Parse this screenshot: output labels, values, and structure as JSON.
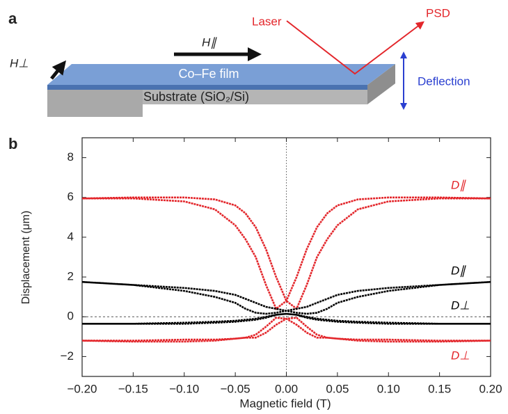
{
  "panel_labels": [
    "a",
    "b"
  ],
  "diagram": {
    "laser": "Laser",
    "psd": "PSD",
    "h_parallel": "H∥",
    "h_perp": "H⊥",
    "film": "Co–Fe film",
    "substrate": "Substrate (SiO₂/Si)",
    "deflection": "Deflection"
  },
  "chart_data": {
    "type": "line",
    "x_label": "Magnetic field (T)",
    "y_label": "Displacement (μm)",
    "xlim": [
      -0.2,
      0.2
    ],
    "ylim": [
      -3,
      9
    ],
    "xticks": [
      {
        "value": -0.2,
        "label": "−0.20"
      },
      {
        "value": -0.15,
        "label": "−0.15"
      },
      {
        "value": -0.1,
        "label": "−0.10"
      },
      {
        "value": -0.05,
        "label": "−0.05"
      },
      {
        "value": 0,
        "label": "0.00"
      },
      0.05,
      {
        "value": 0.1,
        "label": "0.10"
      },
      0.15,
      {
        "value": 0.2,
        "label": "0.20"
      }
    ],
    "yticks": [
      {
        "value": -2,
        "label": "−2"
      },
      0,
      2,
      4,
      6,
      8
    ],
    "grid": false,
    "series": [
      {
        "name": "D∥",
        "color": "#e3262b",
        "x": [
          -0.2,
          -0.15,
          -0.1,
          -0.07,
          -0.05,
          -0.04,
          -0.03,
          -0.02,
          -0.01,
          0,
          0.01,
          0.02,
          0.03,
          0.04,
          0.05,
          0.07,
          0.1,
          0.15,
          0.2,
          0.2,
          0.15,
          0.1,
          0.07,
          0.05,
          0.04,
          0.03,
          0.02,
          0.01,
          0,
          -0.01,
          -0.02,
          -0.03,
          -0.04,
          -0.05,
          -0.07,
          -0.1,
          -0.15,
          -0.2
        ],
        "values": [
          5.95,
          6.0,
          6.0,
          5.9,
          5.6,
          5.2,
          4.5,
          3.4,
          2.0,
          0.8,
          0.4,
          1.6,
          3.0,
          3.9,
          4.6,
          5.4,
          5.8,
          5.95,
          5.95,
          5.95,
          6.0,
          6.0,
          5.9,
          5.6,
          5.2,
          4.5,
          3.4,
          2.0,
          0.8,
          0.4,
          1.6,
          3.0,
          3.9,
          4.6,
          5.4,
          5.8,
          5.95,
          5.95
        ]
      },
      {
        "name": "D∥",
        "color": "#000000",
        "x": [
          -0.2,
          -0.15,
          -0.1,
          -0.07,
          -0.05,
          -0.04,
          -0.03,
          -0.02,
          -0.01,
          0,
          0.01,
          0.02,
          0.03,
          0.04,
          0.05,
          0.07,
          0.1,
          0.15,
          0.2,
          0.2,
          0.15,
          0.1,
          0.07,
          0.05,
          0.04,
          0.03,
          0.02,
          0.01,
          0,
          -0.01,
          -0.02,
          -0.03,
          -0.04,
          -0.05,
          -0.07,
          -0.1,
          -0.15,
          -0.2
        ],
        "values": [
          1.75,
          1.6,
          1.45,
          1.3,
          1.1,
          0.9,
          0.7,
          0.5,
          0.4,
          0.3,
          0.2,
          0.15,
          0.2,
          0.4,
          0.7,
          1.0,
          1.3,
          1.6,
          1.75,
          1.75,
          1.6,
          1.45,
          1.3,
          1.1,
          0.9,
          0.7,
          0.5,
          0.4,
          0.3,
          0.2,
          0.15,
          0.2,
          0.4,
          0.7,
          1.0,
          1.3,
          1.6,
          1.75
        ]
      },
      {
        "name": "D⊥",
        "color": "#000000",
        "x": [
          -0.2,
          -0.15,
          -0.1,
          -0.07,
          -0.05,
          -0.04,
          -0.03,
          -0.02,
          -0.01,
          0,
          0.01,
          0.02,
          0.03,
          0.04,
          0.05,
          0.07,
          0.1,
          0.15,
          0.2,
          0.2,
          0.15,
          0.1,
          0.07,
          0.05,
          0.04,
          0.03,
          0.02,
          0.01,
          0,
          -0.01,
          -0.02,
          -0.03,
          -0.04,
          -0.05,
          -0.07,
          -0.1,
          -0.15,
          -0.2
        ],
        "values": [
          -0.35,
          -0.35,
          -0.3,
          -0.25,
          -0.2,
          -0.15,
          -0.1,
          0.0,
          0.1,
          0.15,
          0.1,
          -0.05,
          -0.15,
          -0.2,
          -0.25,
          -0.3,
          -0.35,
          -0.35,
          -0.35,
          -0.35,
          -0.35,
          -0.3,
          -0.25,
          -0.2,
          -0.15,
          -0.1,
          0.0,
          0.1,
          0.15,
          0.1,
          -0.05,
          -0.15,
          -0.2,
          -0.25,
          -0.3,
          -0.35,
          -0.35,
          -0.35
        ]
      },
      {
        "name": "D⊥",
        "color": "#e3262b",
        "x": [
          -0.2,
          -0.15,
          -0.1,
          -0.07,
          -0.05,
          -0.04,
          -0.03,
          -0.02,
          -0.01,
          0,
          0.01,
          0.02,
          0.03,
          0.04,
          0.05,
          0.07,
          0.1,
          0.15,
          0.2,
          0.2,
          0.15,
          0.1,
          0.07,
          0.05,
          0.04,
          0.03,
          0.02,
          0.01,
          0,
          -0.01,
          -0.02,
          -0.03,
          -0.04,
          -0.05,
          -0.07,
          -0.1,
          -0.15,
          -0.2
        ],
        "values": [
          -1.2,
          -1.2,
          -1.15,
          -1.15,
          -1.1,
          -1.05,
          -1.05,
          -0.8,
          -0.4,
          -0.1,
          -0.05,
          -0.5,
          -0.9,
          -1.05,
          -1.1,
          -1.2,
          -1.25,
          -1.25,
          -1.2,
          -1.2,
          -1.2,
          -1.15,
          -1.15,
          -1.1,
          -1.05,
          -1.05,
          -0.8,
          -0.4,
          -0.1,
          -0.05,
          -0.5,
          -0.9,
          -1.05,
          -1.1,
          -1.2,
          -1.25,
          -1.25,
          -1.2
        ]
      }
    ]
  }
}
